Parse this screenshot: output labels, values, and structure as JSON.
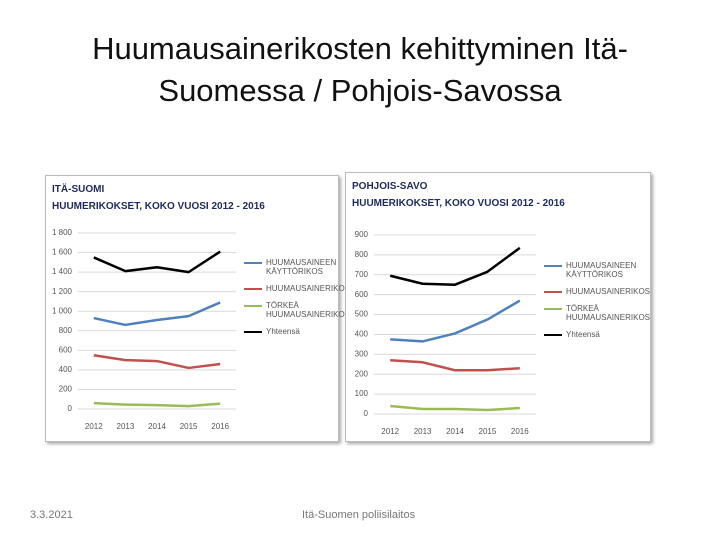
{
  "title": "Huumausainerikosten kehittyminen Itä-Suomessa / Pohjois-Savossa",
  "footer": {
    "date": "3.3.2021",
    "organization": "Itä-Suomen poliisilaitos"
  },
  "chart_data": [
    {
      "type": "line",
      "title": "ITÄ-SUOMI",
      "subtitle": "HUUMERIKOKSET, KOKO VUOSI 2012 - 2016",
      "categories": [
        "2012",
        "2013",
        "2014",
        "2015",
        "2016"
      ],
      "ylim": [
        0,
        1800
      ],
      "yticks": [
        0,
        200,
        400,
        600,
        800,
        {
          "value": 1000,
          "label": "1 000"
        },
        {
          "value": 1200,
          "label": "1 200"
        },
        {
          "value": 1400,
          "label": "1 400"
        },
        {
          "value": 1600,
          "label": "1 600"
        },
        {
          "value": 1800,
          "label": "1 800"
        }
      ],
      "grid": true,
      "legend": "right",
      "series": [
        {
          "name": "HUUMAUSAINEEN KÄYTTÖRIKOS",
          "color": "#4f81bd",
          "values": [
            930,
            860,
            910,
            950,
            1090
          ]
        },
        {
          "name": "HUUMAUSAINERIKOS",
          "color": "#c0504d",
          "values": [
            550,
            500,
            490,
            420,
            460
          ]
        },
        {
          "name": "TÖRKEÄ HUUMAUSAINERIKOS",
          "color": "#9bbb59",
          "values": [
            60,
            45,
            40,
            30,
            55
          ]
        },
        {
          "name": "Yhteensä",
          "color": "#000000",
          "values": [
            1550,
            1410,
            1450,
            1400,
            1610
          ]
        }
      ]
    },
    {
      "type": "line",
      "title": "POHJOIS-SAVO",
      "subtitle": "HUUMERIKOKSET, KOKO VUOSI 2012 - 2016",
      "categories": [
        "2012",
        "2013",
        "2014",
        "2015",
        "2016"
      ],
      "ylim": [
        0,
        900
      ],
      "yticks": [
        0,
        100,
        200,
        300,
        400,
        500,
        600,
        700,
        800,
        900
      ],
      "grid": true,
      "legend": "right",
      "series": [
        {
          "name": "HUUMAUSAINEEN KÄYTTÖRIKOS",
          "color": "#4f81bd",
          "values": [
            375,
            365,
            405,
            475,
            570
          ]
        },
        {
          "name": "HUUMAUSAINERIKOS",
          "color": "#c0504d",
          "values": [
            270,
            260,
            220,
            220,
            230
          ]
        },
        {
          "name": "TÖRKEÄ HUUMAUSAINERIKOS",
          "color": "#9bbb59",
          "values": [
            40,
            25,
            25,
            20,
            30
          ]
        },
        {
          "name": "Yhteensä",
          "color": "#000000",
          "values": [
            695,
            655,
            650,
            715,
            835
          ]
        }
      ]
    }
  ]
}
